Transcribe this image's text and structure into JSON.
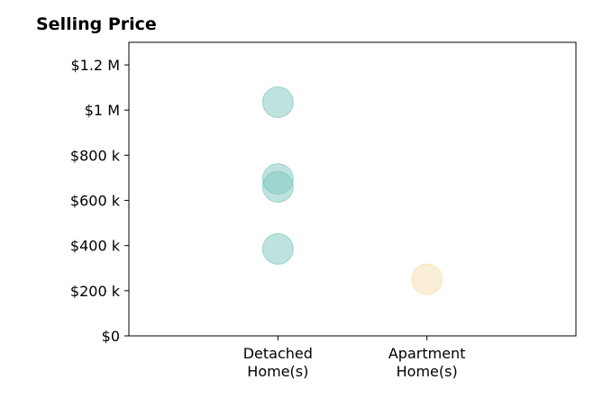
{
  "chart_data": {
    "type": "scatter",
    "title": "Selling Price",
    "xlabel": "",
    "ylabel": "",
    "categories": [
      "Detached\nHome(s)",
      "Apartment\nHome(s)"
    ],
    "series": [
      {
        "values": [
          {
            "x": "Detached\nHome(s)",
            "y": 1035000
          },
          {
            "x": "Detached\nHome(s)",
            "y": 695000
          },
          {
            "x": "Detached\nHome(s)",
            "y": 660000
          },
          {
            "x": "Detached\nHome(s)",
            "y": 385000
          }
        ]
      },
      {
        "values": [
          {
            "x": "Apartment\nHome(s)",
            "y": 250000
          }
        ]
      }
    ],
    "yticks": [
      0,
      200000,
      400000,
      600000,
      800000,
      1000000,
      1200000
    ],
    "ytick_labels": [
      "$0",
      "$200 k",
      "$400 k",
      "$600 k",
      "$800 k",
      "$1 M",
      "$1.2 M"
    ],
    "ylim": [
      0,
      1300000
    ],
    "grid": false,
    "colors": [
      "#7ec8bf",
      "#f5deae"
    ]
  }
}
